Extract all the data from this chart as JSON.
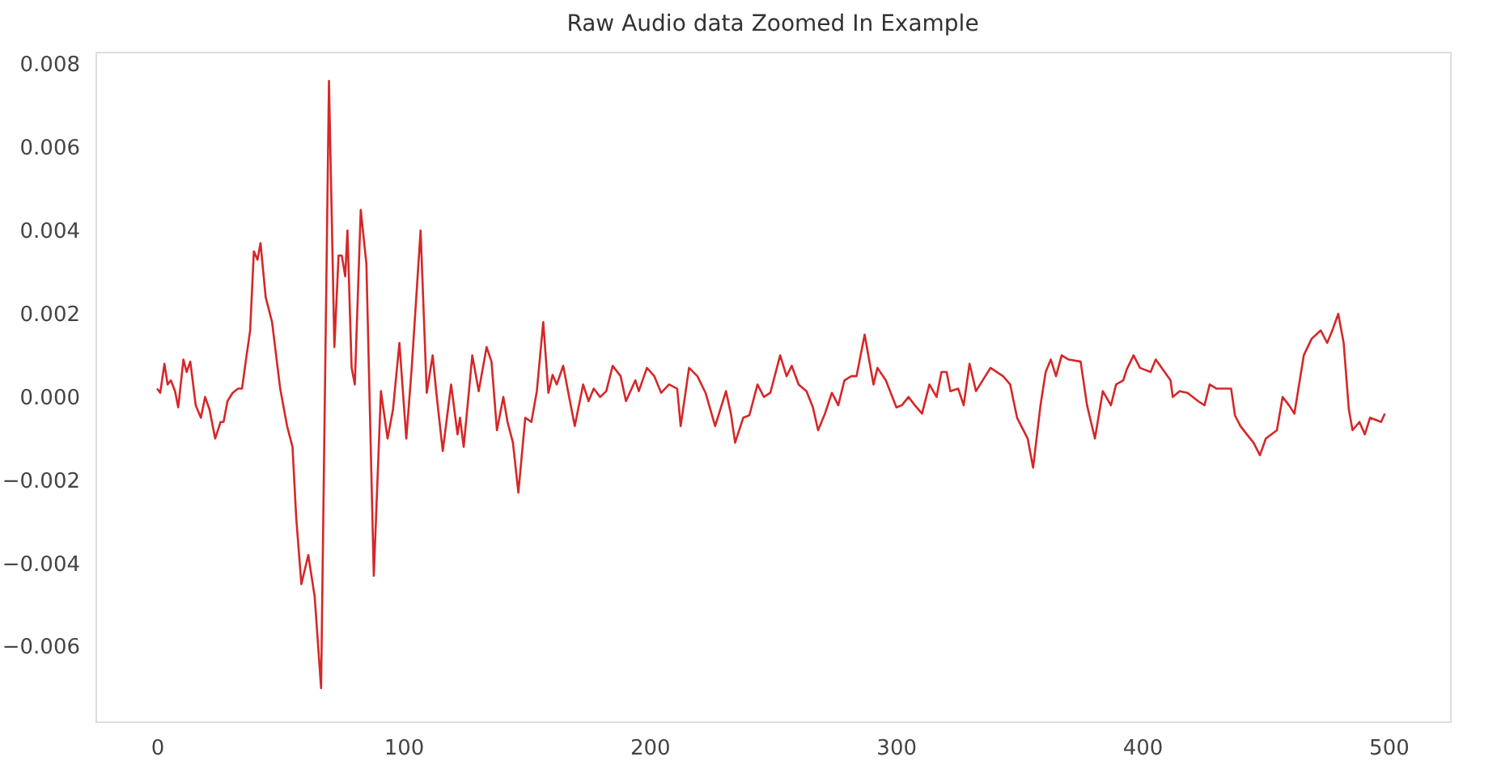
{
  "chart_data": {
    "type": "line",
    "title": "Raw Audio data Zoomed In Example",
    "xlim": [
      -25,
      525
    ],
    "xticks": [
      0,
      100,
      200,
      300,
      400,
      500
    ],
    "ylim": [
      -0.0078,
      0.0083
    ],
    "yticks": [
      {
        "value": -0.006,
        "label": "−0.006"
      },
      {
        "value": -0.004,
        "label": "−0.004"
      },
      {
        "value": -0.002,
        "label": "−0.002"
      },
      {
        "value": 0,
        "label": "0.000"
      },
      {
        "value": 0.002,
        "label": "0.002"
      },
      {
        "value": 0.004,
        "label": "0.004"
      },
      {
        "value": 0.006,
        "label": "0.006"
      },
      {
        "value": 0.008,
        "label": "0.008"
      }
    ],
    "grid": false,
    "line_style": "solid",
    "marker": "none",
    "series": [
      {
        "color": "#d62728",
        "x": [
          0,
          1.3,
          3,
          4.3,
          5.6,
          7.3,
          8.6,
          10.7,
          12,
          13.5,
          15.7,
          17.8,
          19.5,
          21.3,
          23.6,
          25.8,
          27,
          28.6,
          30.7,
          32.9,
          34.5,
          36,
          37.8,
          39.3,
          40.8,
          42,
          44.1,
          46.7,
          50,
          52.8,
          55,
          56.5,
          58.6,
          61.4,
          64,
          66.6,
          69.8,
          72,
          73.7,
          75,
          76.4,
          77.3,
          79,
          80.3,
          82.7,
          85,
          88,
          90.9,
          93.6,
          95.8,
          98.4,
          101.2,
          103.4,
          107,
          109.5,
          111.9,
          113.4,
          116,
          119.4,
          122,
          123,
          124.5,
          128,
          130.6,
          133.8,
          135.8,
          138,
          140.6,
          142.3,
          144.5,
          146.7,
          149.5,
          152,
          154.2,
          156.8,
          158.9,
          160.6,
          162.3,
          164.9,
          167,
          169.6,
          173,
          175.2,
          177.3,
          179.9,
          182.4,
          185,
          188.2,
          190.4,
          194.2,
          195.6,
          198.9,
          201.9,
          204.7,
          207.9,
          211.2,
          212.6,
          216,
          219.4,
          222.7,
          226.6,
          228.7,
          231,
          233,
          234.7,
          238,
          240.5,
          243.8,
          246.4,
          249,
          253,
          255.6,
          257.7,
          260.5,
          263.7,
          266.3,
          268.4,
          271.2,
          274,
          276.6,
          279.1,
          281.9,
          284,
          287.3,
          290.9,
          292.5,
          295.9,
          300.2,
          302.4,
          305.1,
          307.7,
          310.6,
          313.6,
          316.5,
          318.5,
          320.6,
          322.1,
          325.3,
          327.5,
          329.9,
          332.5,
          338.4,
          343.5,
          346.4,
          349.2,
          353.5,
          355.7,
          358.7,
          360.8,
          362.9,
          365,
          367.3,
          370.1,
          375,
          377.6,
          380.8,
          384,
          387.3,
          389.4,
          392.3,
          393.7,
          396.5,
          399.1,
          403.4,
          405.5,
          411.5,
          412.4,
          415.2,
          418.4,
          422.7,
          425.3,
          427.4,
          430.2,
          436.1,
          437.7,
          439.9,
          442.5,
          445.2,
          447.8,
          450.2,
          454.7,
          457,
          459.6,
          461.8,
          465.6,
          468.8,
          472.5,
          475.1,
          477.2,
          479.6,
          481.8,
          483.9,
          485.4,
          488.2,
          490.4,
          492.5,
          497,
          498.5
        ],
        "values": [
          0.0002,
          0.0001,
          0.0008,
          0.0003,
          0.0004,
          0.00014,
          -0.00025,
          0.0009,
          0.0006,
          0.00085,
          -0.0002,
          -0.0005,
          0.0,
          -0.0003,
          -0.001,
          -0.0006,
          -0.0006,
          -0.0001,
          0.0001,
          0.0002,
          0.0002,
          0.00085,
          0.0016,
          0.0035,
          0.0033,
          0.0037,
          0.0024,
          0.0018,
          0.0002,
          -0.0007,
          -0.0012,
          -0.0029,
          -0.0045,
          -0.0038,
          -0.0048,
          -0.007,
          0.0076,
          0.0012,
          0.0034,
          0.0034,
          0.0029,
          0.004,
          0.0007,
          0.0003,
          0.0045,
          0.0032,
          -0.0043,
          0.00014,
          -0.001,
          -0.0003,
          0.0013,
          -0.001,
          0.0007,
          0.004,
          0.0001,
          0.001,
          0.0001,
          -0.0013,
          0.0003,
          -0.0009,
          -0.0005,
          -0.0012,
          0.001,
          0.00014,
          0.0012,
          0.00085,
          -0.0008,
          0.0,
          -0.0006,
          -0.0011,
          -0.0023,
          -0.0005,
          -0.0006,
          0.00014,
          0.0018,
          0.0001,
          0.00053,
          0.0003,
          0.00075,
          0.0001,
          -0.0007,
          0.0003,
          -0.0001,
          0.0002,
          0.0,
          0.00014,
          0.00075,
          0.0005,
          -0.0001,
          0.0004,
          0.00014,
          0.0007,
          0.0005,
          0.0001,
          0.0003,
          0.0002,
          -0.0007,
          0.0007,
          0.0005,
          0.0001,
          -0.0007,
          -0.0003,
          0.00014,
          -0.0004,
          -0.0011,
          -0.0005,
          -0.00044,
          0.0003,
          0.0,
          0.0001,
          0.001,
          0.0005,
          0.00075,
          0.0003,
          0.00014,
          -0.00025,
          -0.0008,
          -0.0004,
          0.0001,
          -0.0002,
          0.0004,
          0.0005,
          0.0005,
          0.0015,
          0.0003,
          0.0007,
          0.0004,
          -0.00025,
          -0.0002,
          0.0,
          -0.0002,
          -0.0004,
          0.0003,
          0.0,
          0.0006,
          0.0006,
          0.00014,
          0.0002,
          -0.0002,
          0.0008,
          0.00014,
          0.0007,
          0.0005,
          0.0003,
          -0.0005,
          -0.001,
          -0.0017,
          -0.0002,
          0.0006,
          0.0009,
          0.0005,
          0.001,
          0.0009,
          0.00085,
          -0.0002,
          -0.001,
          0.00014,
          -0.0002,
          0.0003,
          0.0004,
          0.00066,
          0.001,
          0.0007,
          0.0006,
          0.0009,
          0.0004,
          0.0,
          0.00014,
          0.0001,
          -0.0001,
          -0.0002,
          0.0003,
          0.0002,
          0.0002,
          -0.00045,
          -0.0007,
          -0.0009,
          -0.0011,
          -0.0014,
          -0.001,
          -0.0008,
          0.0,
          -0.0002,
          -0.0004,
          0.001,
          0.0014,
          0.0016,
          0.0013,
          0.0016,
          0.002,
          0.0013,
          -0.0003,
          -0.0008,
          -0.0006,
          -0.0009,
          -0.0005,
          -0.0006,
          -0.0004
        ]
      }
    ]
  }
}
